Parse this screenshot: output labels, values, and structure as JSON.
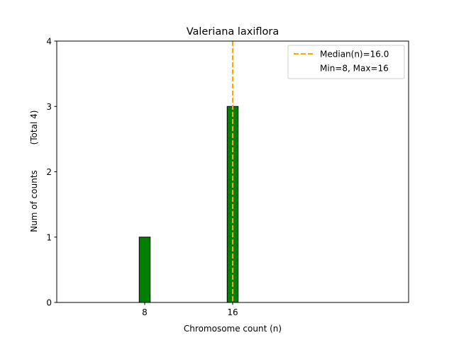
{
  "chart_data": {
    "type": "bar",
    "title": "Valeriana laxiflora",
    "xlabel": "Chromosome count (n)",
    "ylabel": "Num of counts",
    "ylabel_total": "(Total 4)",
    "x": [
      8,
      16
    ],
    "values": [
      1,
      3
    ],
    "xticks": [
      8,
      16
    ],
    "yticks": [
      0,
      1,
      2,
      3,
      4
    ],
    "xlim": [
      0,
      32
    ],
    "ylim": [
      0,
      4
    ],
    "bar_color": "#008000",
    "bar_edge_color": "#000000",
    "median": 16.0,
    "median_color": "#FFA500",
    "legend": {
      "position": "top-right",
      "entries": [
        "Median(n)=16.0",
        "Min=8, Max=16"
      ]
    }
  }
}
